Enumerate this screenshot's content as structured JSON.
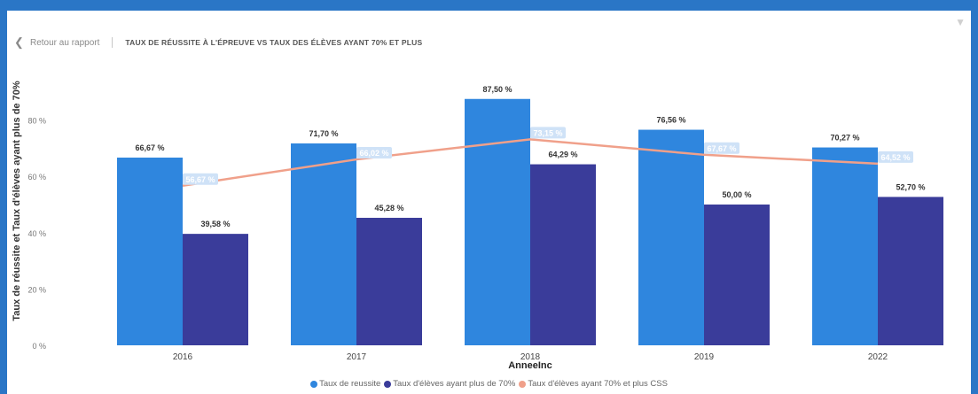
{
  "header": {
    "back_label": "Retour au rapport",
    "title": "TAUX DE RÉUSSITE À L'ÉPREUVE VS TAUX DES ÉLÈVES AYANT 70% ET PLUS"
  },
  "colors": {
    "series1": "#2f86de",
    "series2": "#3a3c9a",
    "series3": "#f0a08a",
    "frame": "#2a76c6"
  },
  "icons": {
    "back": "chevron-left-icon",
    "filter": "filter-icon"
  },
  "chart_data": {
    "type": "bar",
    "categories": [
      "2016",
      "2017",
      "2018",
      "2019",
      "2022"
    ],
    "xlabel": "AnneeInc",
    "ylabel": "Taux de réussite et Taux d'élèves ayant plus de 70%",
    "ylim": [
      0,
      100
    ],
    "yticks": [
      0,
      20,
      40,
      60,
      80
    ],
    "ytick_labels": [
      "0 %",
      "20 %",
      "40 %",
      "60 %",
      "80 %"
    ],
    "grid": false,
    "legend_position": "bottom",
    "series": [
      {
        "name": "Taux de reussite",
        "type": "bar",
        "values": [
          66.67,
          71.7,
          87.5,
          76.56,
          70.27
        ],
        "labels": [
          "66,67 %",
          "71,70 %",
          "87,50 %",
          "76,56 %",
          "70,27 %"
        ]
      },
      {
        "name": "Taux d'élèves ayant plus de 70%",
        "type": "bar",
        "values": [
          39.58,
          45.28,
          64.29,
          50.0,
          52.7
        ],
        "labels": [
          "39,58 %",
          "45,28 %",
          "64,29 %",
          "50,00 %",
          "52,70 %"
        ]
      },
      {
        "name": "Taux d'élèves ayant 70% et plus CSS",
        "type": "line",
        "values": [
          56.67,
          66.02,
          73.15,
          67.67,
          64.52
        ],
        "labels": [
          "56,67 %",
          "66,02 %",
          "73,15 %",
          "67,67 %",
          "64,52 %"
        ]
      }
    ]
  }
}
